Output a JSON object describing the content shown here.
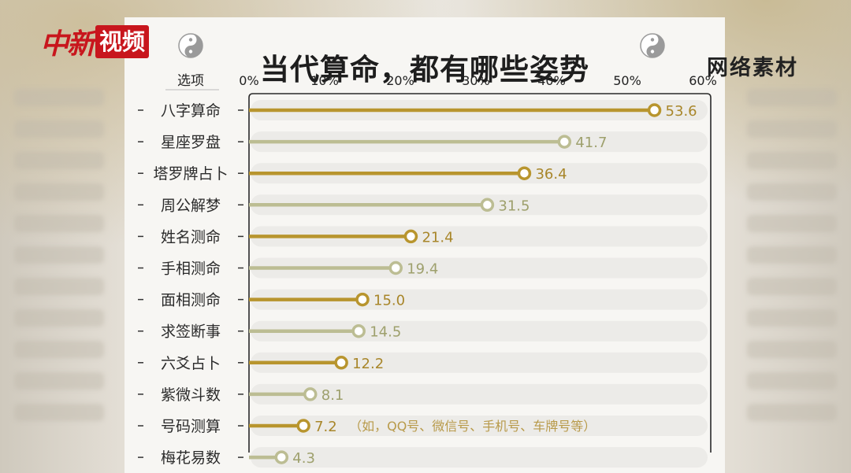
{
  "logo": {
    "part1": "中新",
    "part2": "视频"
  },
  "watermark": "网络素材",
  "chart_data": {
    "type": "bar",
    "title": "当代算命，都有哪些姿势",
    "xlabel": "选项",
    "ticks": [
      "0%",
      "10%",
      "20%",
      "30%",
      "40%",
      "50%",
      "60%"
    ],
    "xlim": [
      0,
      60
    ],
    "categories": [
      "八字算命",
      "星座罗盘",
      "塔罗牌占卜",
      "周公解梦",
      "姓名测命",
      "手相测命",
      "面相测命",
      "求签断事",
      "六爻占卜",
      "紫微斗数",
      "号码测算",
      "梅花易数"
    ],
    "values": [
      53.6,
      41.7,
      36.4,
      31.5,
      21.4,
      19.4,
      15.0,
      14.5,
      12.2,
      8.1,
      7.2,
      4.3
    ],
    "value_labels": [
      "53.6",
      "41.7",
      "36.4",
      "31.5",
      "21.4",
      "19.4",
      "15.0",
      "14.5",
      "12.2",
      "8.1",
      "7.2",
      "4.3"
    ],
    "annotations": [
      "",
      "",
      "",
      "",
      "",
      "",
      "",
      "",
      "",
      "",
      "（如，QQ号、微信号、手机号、车牌号等）",
      ""
    ],
    "colors": {
      "primary": "#b8952e",
      "secondary": "#bcbd93",
      "track": "#ecebe8",
      "text": "#b8952e"
    }
  }
}
